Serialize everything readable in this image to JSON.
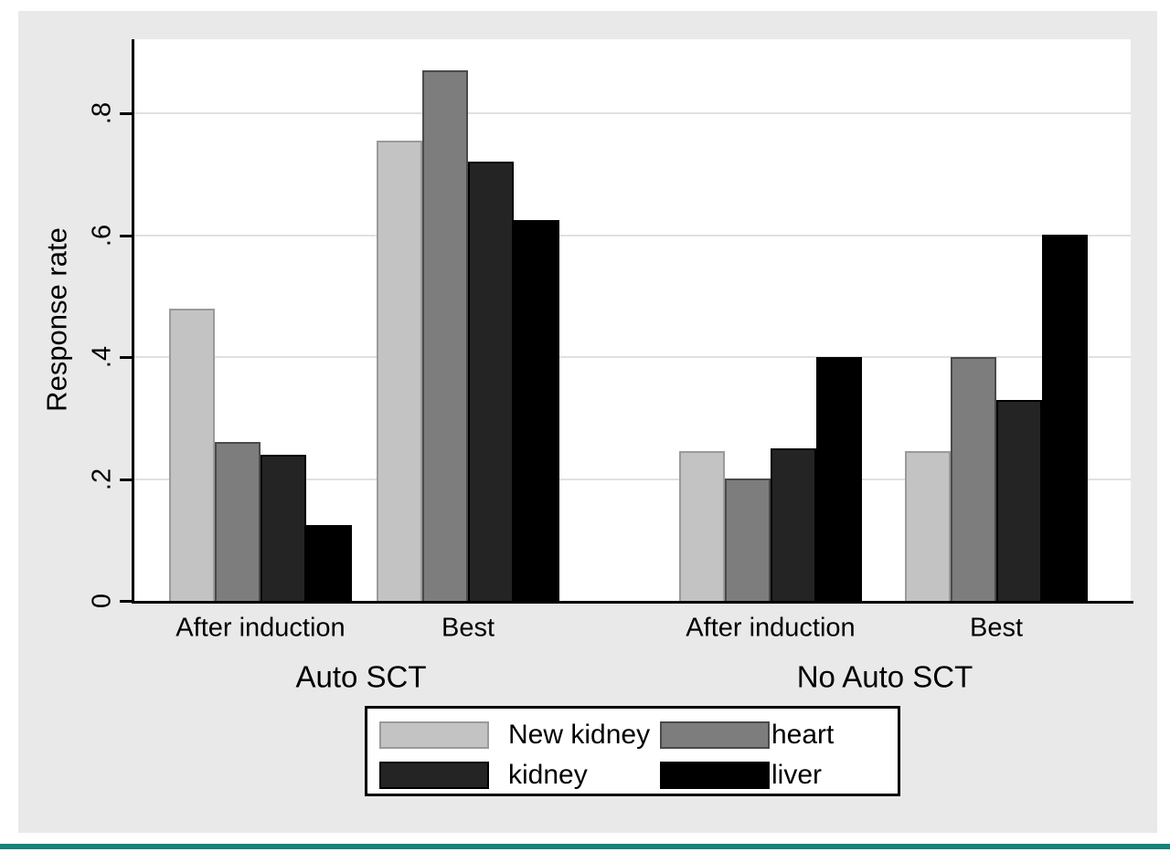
{
  "figure": {
    "background_color": "#e9e9e9",
    "plot_background_color": "#ffffff",
    "gridline_color": "#e0e0e0",
    "axis_color": "#000000",
    "accent_rule_color": "#17827b"
  },
  "chart_data": {
    "type": "bar",
    "title": "",
    "ylabel": "Response rate",
    "y_axis": {
      "range": [
        0,
        0.92
      ],
      "grid": true,
      "ticks": [
        {
          "label": "0",
          "value": 0
        },
        {
          "label": ".2",
          "value": 0.2
        },
        {
          "label": ".4",
          "value": 0.4
        },
        {
          "label": ".6",
          "value": 0.6
        },
        {
          "label": ".8",
          "value": 0.8
        }
      ]
    },
    "supergroups": [
      {
        "label": "Auto SCT",
        "categories": [
          "After induction",
          "Best"
        ]
      },
      {
        "label": "No Auto SCT",
        "categories": [
          "After induction",
          "Best"
        ]
      }
    ],
    "x_categories": [
      "After induction",
      "Best",
      "After induction",
      "Best"
    ],
    "group_order": [
      "Auto SCT / After induction",
      "Auto SCT / Best",
      "No Auto SCT / After induction",
      "No Auto SCT / Best"
    ],
    "series": [
      {
        "name": "New kidney",
        "fill": "#c3c3c3",
        "border": "#9a9a9a",
        "values": [
          0.48,
          0.755,
          0.245,
          0.245
        ]
      },
      {
        "name": "heart",
        "fill": "#7d7d7d",
        "border": "#4a4a4a",
        "values": [
          0.26,
          0.87,
          0.2,
          0.4
        ]
      },
      {
        "name": "kidney",
        "fill": "#242424",
        "border": "#000000",
        "values": [
          0.24,
          0.72,
          0.25,
          0.33
        ]
      },
      {
        "name": "liver",
        "fill": "#000000",
        "border": "#000000",
        "values": [
          0.125,
          0.625,
          0.4,
          0.6
        ]
      }
    ],
    "legend": {
      "position": "bottom",
      "entries": [
        {
          "label": "New kidney"
        },
        {
          "label": "heart"
        },
        {
          "label": "kidney"
        },
        {
          "label": "liver"
        }
      ]
    }
  }
}
